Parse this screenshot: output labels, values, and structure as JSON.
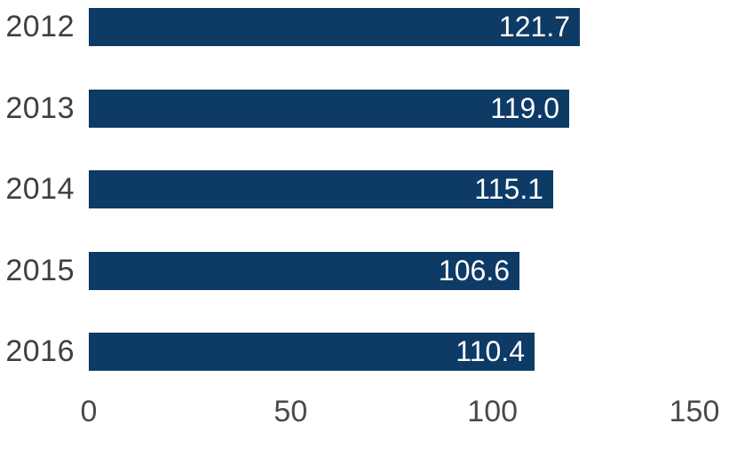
{
  "chart_data": {
    "type": "bar",
    "orientation": "horizontal",
    "title": "",
    "xlabel": "",
    "ylabel": "",
    "categories": [
      "2012",
      "2013",
      "2014",
      "2015",
      "2016"
    ],
    "values": [
      121.7,
      119.0,
      115.1,
      106.6,
      110.4
    ],
    "value_labels": [
      "121.7",
      "119.0",
      "115.1",
      "106.6",
      "110.4"
    ],
    "x_ticks": [
      0,
      50,
      100,
      150
    ],
    "x_tick_labels": [
      "0",
      "50",
      "100",
      "150"
    ],
    "xlim": [
      0,
      150
    ],
    "grid": false,
    "legend": false,
    "colors": {
      "bar": "#0e3a66",
      "category_text": "#3f3f3f",
      "axis_text": "#4a4a4a",
      "value_text": "#ffffff",
      "background": "#ffffff"
    }
  },
  "layout_note": "bar chart only, no title or legend visible"
}
